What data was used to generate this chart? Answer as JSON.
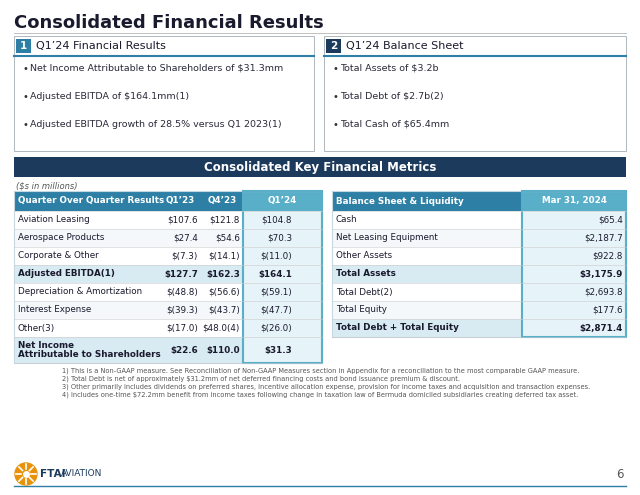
{
  "title": "Consolidated Financial Results",
  "section1_num": "1",
  "section1_title": "Q1’24 Financial Results",
  "section2_num": "2",
  "section2_title": "Q1’24 Balance Sheet",
  "section1_bullets": [
    "Net Income Attributable to Shareholders of $31.3mm",
    "Adjusted EBITDA of $164.1mm(1)",
    "Adjusted EBITDA growth of 28.5% versus Q1 2023(1)"
  ],
  "section2_bullets": [
    "Total Assets of $3.2b",
    "Total Debt of $2.7b(2)",
    "Total Cash of $65.4mm"
  ],
  "metrics_title": "Consolidated Key Financial Metrics",
  "dollars_note": "($s in millions)",
  "left_table_headers": [
    "Quarter Over Quarter Results",
    "Q1’23",
    "Q4’23",
    "Q1’24"
  ],
  "left_table_rows": [
    [
      "Aviation Leasing",
      "$107.6",
      "$121.8",
      "$104.8"
    ],
    [
      "Aerospace Products",
      "$27.4",
      "$54.6",
      "$70.3"
    ],
    [
      "Corporate & Other",
      "$(7.3)",
      "$(14.1)",
      "$(11.0)"
    ],
    [
      "Adjusted EBITDA(1)",
      "$127.7",
      "$162.3",
      "$164.1"
    ],
    [
      "Depreciation & Amortization",
      "$(48.8)",
      "$(56.6)",
      "$(59.1)"
    ],
    [
      "Interest Expense",
      "$(39.3)",
      "$(43.7)",
      "$(47.7)"
    ],
    [
      "Other(3)",
      "$(17.0)",
      "$48.0(4)",
      "$(26.0)"
    ],
    [
      "Net Income\nAttributable to Shareholders",
      "$22.6",
      "$110.0",
      "$31.3"
    ]
  ],
  "right_table_headers": [
    "Balance Sheet & Liquidity",
    "Mar 31, 2024"
  ],
  "right_table_rows": [
    [
      "Cash",
      "$65.4"
    ],
    [
      "Net Leasing Equipment",
      "$2,187.7"
    ],
    [
      "Other Assets",
      "$922.8"
    ],
    [
      "Total Assets",
      "$3,175.9"
    ],
    [
      "Total Debt(2)",
      "$2,693.8"
    ],
    [
      "Total Equity",
      "$177.6"
    ],
    [
      "Total Debt + Total Equity",
      "$2,871.4"
    ]
  ],
  "footnotes": [
    "1) This is a Non-GAAP measure. See Reconciliation of Non-GAAP Measures section in Appendix for a reconciliation to the most comparable GAAP measure.",
    "2) Total Debt is net of approximately $31.2mm of net deferred financing costs and bond issuance premium & discount.",
    "3) Other primarily includes dividends on preferred shares, incentive allocation expense, provision for income taxes and acquisition and transaction expenses.",
    "4) Includes one-time $72.2mm benefit from income taxes following change in taxation law of Bermuda domiciled subsidiaries creating deferred tax asset."
  ],
  "page_number": "6",
  "color_dark_blue": "#1b3a5c",
  "color_medium_blue": "#2e7fa5",
  "color_light_blue": "#5aafc8",
  "color_header_bg": "#1b3a5c",
  "color_col_highlight": "#e6f3f8",
  "color_bold_row": "#d8eaf2",
  "color_border": "#c8d8e0"
}
